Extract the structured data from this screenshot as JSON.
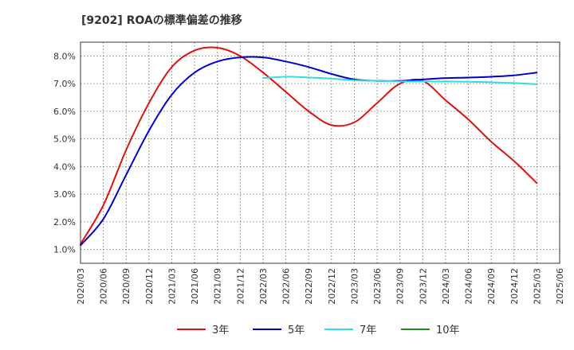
{
  "chart_data": {
    "type": "line",
    "title": "[9202]  ROAの標準偏差の推移",
    "xlabel": "",
    "ylabel": "",
    "x_ticks": [
      "2020/03",
      "2020/06",
      "2020/09",
      "2020/12",
      "2021/03",
      "2021/06",
      "2021/09",
      "2021/12",
      "2022/03",
      "2022/06",
      "2022/09",
      "2022/12",
      "2023/03",
      "2023/06",
      "2023/09",
      "2023/12",
      "2024/03",
      "2024/06",
      "2024/09",
      "2024/12",
      "2025/03",
      "2025/06"
    ],
    "y_ticks": [
      "1.0%",
      "2.0%",
      "3.0%",
      "4.0%",
      "5.0%",
      "6.0%",
      "7.0%",
      "8.0%"
    ],
    "ylim": [
      0.5,
      8.5
    ],
    "grid": true,
    "legend_position": "bottom",
    "series": [
      {
        "name": "3年",
        "color": "#dd1111",
        "x": [
          "2020/03",
          "2020/06",
          "2020/09",
          "2020/12",
          "2021/03",
          "2021/06",
          "2021/09",
          "2021/12",
          "2022/03",
          "2022/06",
          "2022/09",
          "2022/12",
          "2023/03",
          "2023/06",
          "2023/09",
          "2023/12",
          "2024/03",
          "2024/06",
          "2024/09",
          "2024/12",
          "2025/03"
        ],
        "values": [
          1.2,
          2.6,
          4.6,
          6.3,
          7.6,
          8.2,
          8.3,
          8.0,
          7.4,
          6.7,
          6.0,
          5.5,
          5.6,
          6.3,
          7.0,
          7.1,
          6.4,
          5.7,
          4.9,
          4.2,
          3.4
        ]
      },
      {
        "name": "5年",
        "color": "#0000cc",
        "x": [
          "2020/03",
          "2020/06",
          "2020/09",
          "2020/12",
          "2021/03",
          "2021/06",
          "2021/09",
          "2021/12",
          "2022/03",
          "2022/06",
          "2022/09",
          "2022/12",
          "2023/03",
          "2023/06",
          "2023/09",
          "2023/12",
          "2024/03",
          "2024/06",
          "2024/09",
          "2024/12",
          "2025/03"
        ],
        "values": [
          1.15,
          2.1,
          3.7,
          5.3,
          6.6,
          7.4,
          7.8,
          7.95,
          7.95,
          7.8,
          7.6,
          7.35,
          7.15,
          7.1,
          7.1,
          7.15,
          7.2,
          7.22,
          7.25,
          7.3,
          7.4
        ]
      },
      {
        "name": "7年",
        "color": "#33dddd",
        "x": [
          "2022/03",
          "2022/06",
          "2022/09",
          "2022/12",
          "2023/03",
          "2023/06",
          "2023/09",
          "2023/12",
          "2024/03",
          "2024/06",
          "2024/09",
          "2024/12",
          "2025/03"
        ],
        "values": [
          7.2,
          7.25,
          7.22,
          7.18,
          7.12,
          7.1,
          7.08,
          7.08,
          7.08,
          7.07,
          7.05,
          7.02,
          6.98
        ]
      },
      {
        "name": "10年",
        "color": "#228822",
        "x": [],
        "values": []
      }
    ]
  }
}
